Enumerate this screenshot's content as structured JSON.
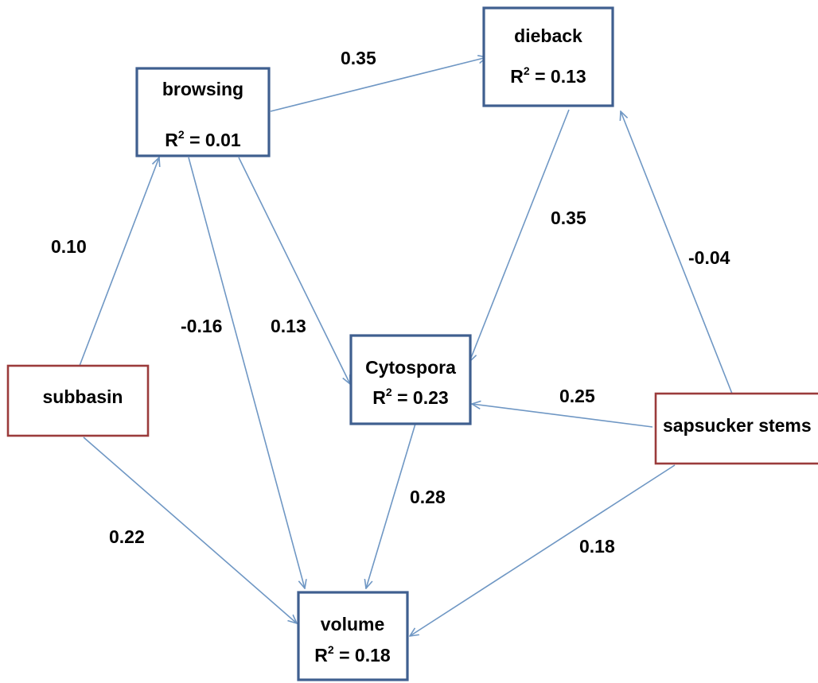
{
  "diagram": {
    "nodes": {
      "browsing": {
        "label": "browsing",
        "r2_prefix": "R",
        "r2_sup": "2",
        "r2_value": " = 0.01",
        "color": "#3f5f8f"
      },
      "dieback": {
        "label": "dieback",
        "r2_prefix": "R",
        "r2_sup": "2",
        "r2_value": " = 0.13",
        "color": "#3f5f8f"
      },
      "cytospora": {
        "label": "Cytospora",
        "r2_prefix": "R",
        "r2_sup": "2",
        "r2_value": " = 0.23",
        "color": "#3f5f8f"
      },
      "volume": {
        "label": "volume",
        "r2_prefix": "R",
        "r2_sup": "2",
        "r2_value": " = 0.18",
        "color": "#3f5f8f"
      },
      "subbasin": {
        "label": "subbasin",
        "color": "#9b3b3b"
      },
      "sapsucker": {
        "label": "sapsucker stems",
        "color": "#9b3b3b"
      }
    },
    "edges": [
      {
        "from": "browsing",
        "to": "dieback",
        "coefficient": "0.35"
      },
      {
        "from": "subbasin",
        "to": "browsing",
        "coefficient": "0.10"
      },
      {
        "from": "browsing",
        "to": "volume",
        "coefficient": "-0.16"
      },
      {
        "from": "browsing",
        "to": "cytospora",
        "coefficient": "0.13"
      },
      {
        "from": "dieback",
        "to": "cytospora",
        "coefficient": "0.35"
      },
      {
        "from": "sapsucker",
        "to": "dieback",
        "coefficient": "-0.04"
      },
      {
        "from": "sapsucker",
        "to": "cytospora",
        "coefficient": "0.25"
      },
      {
        "from": "cytospora",
        "to": "volume",
        "coefficient": "0.28"
      },
      {
        "from": "subbasin",
        "to": "volume",
        "coefficient": "0.22"
      },
      {
        "from": "sapsucker",
        "to": "volume",
        "coefficient": "0.18"
      }
    ],
    "edge_color": "#6f97c4"
  }
}
